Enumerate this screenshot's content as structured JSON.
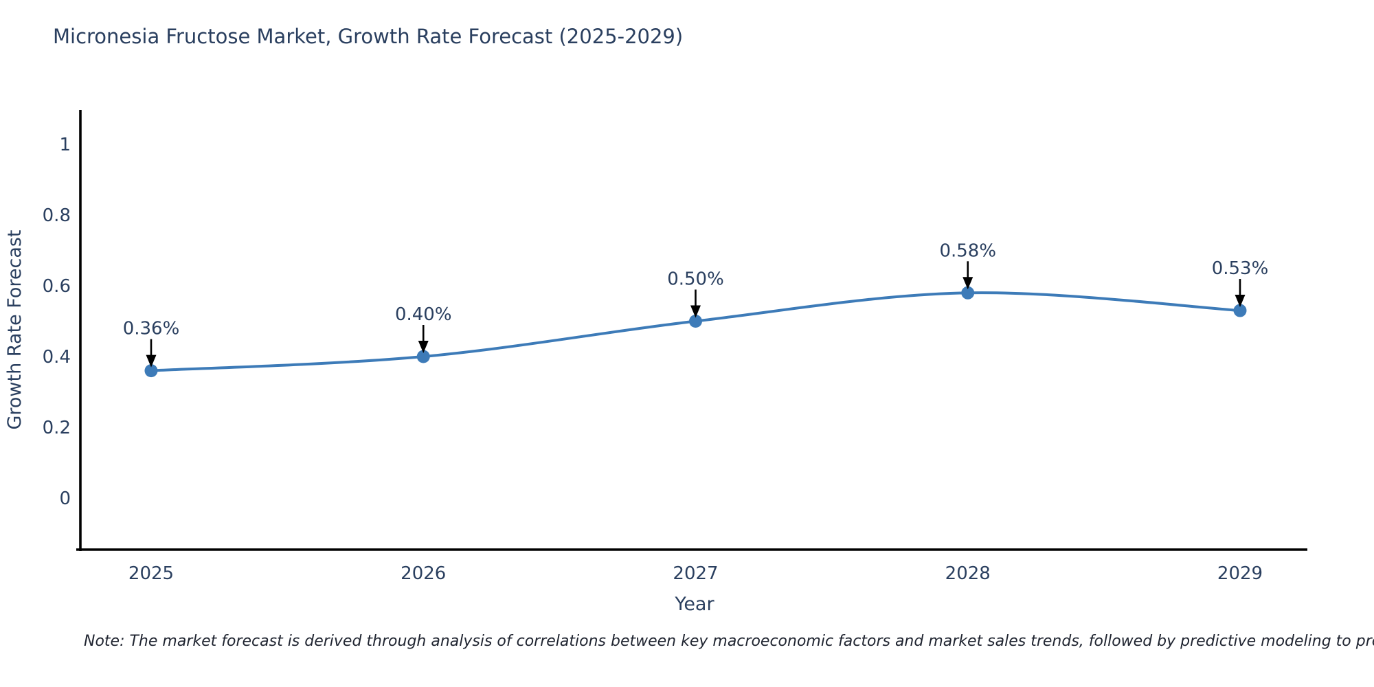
{
  "chart_data": {
    "type": "line",
    "title": "Micronesia Fructose Market, Growth Rate Forecast (2025-2029)",
    "xlabel": "Year",
    "ylabel": "Growth Rate Forecast",
    "x": [
      2025,
      2026,
      2027,
      2028,
      2029
    ],
    "series": [
      {
        "name": "Growth Rate Forecast",
        "values": [
          0.36,
          0.4,
          0.5,
          0.58,
          0.53
        ],
        "point_labels": [
          "0.36%",
          "0.40%",
          "0.50%",
          "0.58%",
          "0.53%"
        ]
      }
    ],
    "yticks": [
      0,
      0.2,
      0.4,
      0.6,
      0.8,
      1
    ],
    "ytick_labels": [
      "0",
      "0.2",
      "0.4",
      "0.6",
      "0.8",
      "1"
    ],
    "ylim": [
      -0.15,
      1.1
    ],
    "grid": false,
    "legend": "none",
    "line_shape": "spline",
    "annotation_arrows": true,
    "footnote": "Note: The market forecast is derived through analysis of correlations between key macroeconomic factors and market sales trends, followed by predictive modeling to project future sales",
    "colors": {
      "line": "#3d7bb8",
      "marker": "#3d7bb8",
      "axis": "#000000",
      "text": "#2a3f5f",
      "annotation_arrow": "#000000",
      "background": "#ffffff"
    }
  }
}
